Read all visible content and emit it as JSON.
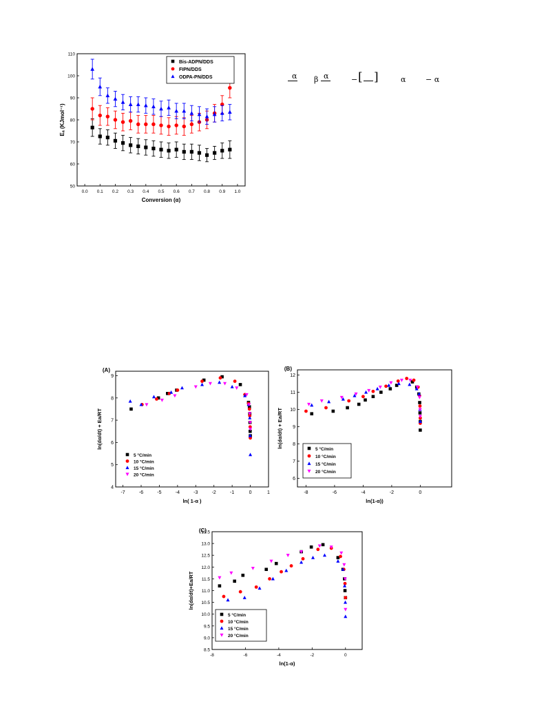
{
  "charts": {
    "main": {
      "type": "scatter",
      "title": "",
      "xlabel": "Conversion (α)",
      "ylabel": "Eₐ (KJmol⁻¹)",
      "xlim": [
        -0.05,
        1.05
      ],
      "ylim": [
        50,
        110
      ],
      "xticks": [
        "0.0",
        "0.1",
        "0.2",
        "0.3",
        "0.4",
        "0.5",
        "0.6",
        "0.7",
        "0.8",
        "0.9",
        "1.0"
      ],
      "yticks": [
        "50",
        "60",
        "70",
        "80",
        "90",
        "100",
        "110"
      ],
      "legend_position": "top-right",
      "x": [
        0.05,
        0.1,
        0.15,
        0.2,
        0.25,
        0.3,
        0.35,
        0.4,
        0.45,
        0.5,
        0.55,
        0.6,
        0.65,
        0.7,
        0.75,
        0.8,
        0.85,
        0.9,
        0.95
      ],
      "series": [
        {
          "name": "Bis-ADPN/DDS",
          "color": "#000000",
          "marker": "square",
          "values": [
            76.5,
            72.5,
            72,
            70.5,
            69.5,
            68.5,
            68,
            67.5,
            67,
            66.5,
            66,
            66.5,
            65.5,
            65.5,
            65,
            64,
            65,
            66,
            66.5
          ],
          "errors": [
            4,
            3.5,
            3.5,
            3.5,
            3.5,
            3.5,
            3.5,
            3.5,
            3.5,
            3.5,
            3.5,
            3.5,
            3.5,
            3.5,
            3.5,
            3,
            3,
            3.5,
            4
          ]
        },
        {
          "name": "FIPN/DDS",
          "color": "#ff0000",
          "marker": "circle",
          "values": [
            85,
            82,
            81.5,
            80,
            79,
            79.5,
            78,
            78,
            78,
            77.5,
            77,
            77.5,
            77,
            78,
            79,
            80,
            83,
            87,
            94.5
          ],
          "errors": [
            5,
            4.5,
            4,
            4,
            4,
            4,
            4,
            4,
            4,
            4,
            4,
            4,
            4,
            4,
            4,
            4,
            4,
            4,
            4.5
          ]
        },
        {
          "name": "ODPA-PN/DDS",
          "color": "#0000ff",
          "marker": "triangle",
          "values": [
            103,
            95,
            91,
            89.5,
            88,
            87,
            87,
            86.5,
            86,
            85,
            85.5,
            84,
            84,
            83,
            82.5,
            81.5,
            82.5,
            83,
            83.5
          ],
          "errors": [
            4.5,
            4,
            3.5,
            3.5,
            3.5,
            3.5,
            3.5,
            3.5,
            3.5,
            3.5,
            3.5,
            3.5,
            3.5,
            3.5,
            3.5,
            3.5,
            3.5,
            3.5,
            3.5
          ]
        }
      ]
    },
    "A": {
      "type": "scatter",
      "panel_label": "(A)",
      "xlabel": "ln( 1-α )",
      "ylabel": "ln(dα/dt) + Ea/RT",
      "xlim": [
        -7.4,
        1
      ],
      "ylim": [
        4,
        9.2
      ],
      "xticks": [
        "-7",
        "-6",
        "-5",
        "-4",
        "-3",
        "-2",
        "-1",
        "0",
        "1"
      ],
      "yticks": [
        "4",
        "5",
        "6",
        "7",
        "8",
        "9"
      ],
      "legend_position": "bottom-left",
      "series": [
        {
          "name": "5 °C/min",
          "color": "#000000",
          "marker": "square",
          "points": [
            [
              -6.55,
              7.5
            ],
            [
              -5.05,
              8.0
            ],
            [
              -4.55,
              8.2
            ],
            [
              -4.05,
              8.35
            ],
            [
              -2.55,
              8.8
            ],
            [
              -1.55,
              8.95
            ],
            [
              -0.55,
              8.6
            ],
            [
              -0.1,
              7.8
            ],
            [
              -0.05,
              7.6
            ],
            [
              -0.03,
              7.3
            ],
            [
              -0.02,
              6.9
            ],
            [
              -0.01,
              6.5
            ],
            [
              0,
              6.3
            ]
          ]
        },
        {
          "name": "10 °C/min",
          "color": "#ff0000",
          "marker": "circle",
          "points": [
            [
              -5.95,
              7.7
            ],
            [
              -5.15,
              7.95
            ],
            [
              -4.45,
              8.2
            ],
            [
              -4.0,
              8.35
            ],
            [
              -2.65,
              8.75
            ],
            [
              -1.65,
              8.9
            ],
            [
              -0.85,
              8.75
            ],
            [
              -0.3,
              8.15
            ],
            [
              -0.1,
              7.75
            ],
            [
              -0.05,
              7.5
            ],
            [
              -0.03,
              7.2
            ],
            [
              -0.01,
              6.7
            ],
            [
              0,
              6.2
            ]
          ]
        },
        {
          "name": "15 °C/min",
          "color": "#0000ff",
          "marker": "triangle",
          "points": [
            [
              -6.6,
              7.85
            ],
            [
              -6.0,
              7.7
            ],
            [
              -5.3,
              8.05
            ],
            [
              -4.35,
              8.25
            ],
            [
              -3.75,
              8.45
            ],
            [
              -2.65,
              8.6
            ],
            [
              -1.7,
              8.7
            ],
            [
              -1.0,
              8.5
            ],
            [
              -0.3,
              8.1
            ],
            [
              -0.1,
              7.7
            ],
            [
              -0.03,
              7.1
            ],
            [
              -0.01,
              6.3
            ],
            [
              0,
              5.45
            ]
          ]
        },
        {
          "name": "20 °C/min",
          "color": "#ff00ff",
          "marker": "triangle-down",
          "points": [
            [
              -5.7,
              7.7
            ],
            [
              -4.85,
              7.9
            ],
            [
              -4.15,
              8.1
            ],
            [
              -3.0,
              8.5
            ],
            [
              -2.2,
              8.65
            ],
            [
              -1.4,
              8.65
            ],
            [
              -0.75,
              8.45
            ],
            [
              -0.2,
              8.15
            ],
            [
              -0.07,
              7.7
            ],
            [
              -0.03,
              7.3
            ],
            [
              -0.01,
              6.9
            ],
            [
              0,
              6.6
            ]
          ]
        }
      ]
    },
    "B": {
      "type": "scatter",
      "panel_label": "(B)",
      "xlabel": "ln(1-α))",
      "ylabel": "ln(dα/dt) + Ea/RT",
      "xlim": [
        -8.6,
        2.2
      ],
      "ylim": [
        5.5,
        12.3
      ],
      "xticks": [
        "-8",
        "-6",
        "-4",
        "-2",
        "0"
      ],
      "yticks": [
        "6",
        "7",
        "8",
        "9",
        "10",
        "11",
        "12"
      ],
      "legend_position": "bottom-left",
      "series": [
        {
          "name": "5 °C/min",
          "color": "#000000",
          "marker": "square",
          "points": [
            [
              -7.6,
              9.75
            ],
            [
              -6.1,
              9.9
            ],
            [
              -5.1,
              10.1
            ],
            [
              -4.3,
              10.3
            ],
            [
              -3.85,
              10.55
            ],
            [
              -3.3,
              10.75
            ],
            [
              -2.75,
              11.0
            ],
            [
              -2.1,
              11.2
            ],
            [
              -1.65,
              11.4
            ],
            [
              -0.55,
              11.6
            ],
            [
              -0.25,
              11.3
            ],
            [
              -0.1,
              10.9
            ],
            [
              -0.04,
              10.4
            ],
            [
              -0.02,
              9.8
            ],
            [
              0,
              9.3
            ],
            [
              0,
              8.8
            ]
          ]
        },
        {
          "name": "10 °C/min",
          "color": "#ff0000",
          "marker": "circle",
          "points": [
            [
              -8.0,
              9.9
            ],
            [
              -6.6,
              10.1
            ],
            [
              -5.0,
              10.5
            ],
            [
              -4.0,
              10.75
            ],
            [
              -3.3,
              11.05
            ],
            [
              -2.4,
              11.35
            ],
            [
              -1.55,
              11.65
            ],
            [
              -0.95,
              11.8
            ],
            [
              -0.45,
              11.7
            ],
            [
              -0.15,
              11.3
            ],
            [
              -0.05,
              10.8
            ],
            [
              -0.02,
              10.2
            ],
            [
              0,
              9.5
            ],
            [
              0,
              9.2
            ]
          ]
        },
        {
          "name": "15 °C/min",
          "color": "#0000ff",
          "marker": "triangle",
          "points": [
            [
              -7.6,
              10.25
            ],
            [
              -6.4,
              10.45
            ],
            [
              -5.4,
              10.6
            ],
            [
              -4.6,
              10.8
            ],
            [
              -3.8,
              11.0
            ],
            [
              -3.0,
              11.2
            ],
            [
              -2.2,
              11.4
            ],
            [
              -1.5,
              11.5
            ],
            [
              -0.75,
              11.45
            ],
            [
              -0.25,
              11.2
            ],
            [
              -0.08,
              10.9
            ],
            [
              -0.02,
              10.0
            ],
            [
              0,
              9.3
            ]
          ]
        },
        {
          "name": "20 °C/min",
          "color": "#ff00ff",
          "marker": "triangle-down",
          "points": [
            [
              -7.8,
              10.3
            ],
            [
              -6.9,
              10.5
            ],
            [
              -5.5,
              10.7
            ],
            [
              -4.5,
              10.9
            ],
            [
              -3.6,
              11.1
            ],
            [
              -2.8,
              11.3
            ],
            [
              -2.05,
              11.55
            ],
            [
              -1.3,
              11.7
            ],
            [
              -0.7,
              11.7
            ],
            [
              -0.2,
              11.3
            ],
            [
              -0.05,
              10.7
            ],
            [
              -0.01,
              10.0
            ],
            [
              0,
              9.6
            ]
          ]
        }
      ]
    },
    "C": {
      "type": "scatter",
      "panel_label": "(C)",
      "xlabel": "ln(1-α)",
      "ylabel": "ln(dα/dt)+Ea/RT",
      "xlim": [
        -8,
        1
      ],
      "ylim": [
        8.5,
        13.5
      ],
      "xticks": [
        "-8",
        "-6",
        "-4",
        "-2",
        "0"
      ],
      "yticks": [
        "8.5",
        "9.0",
        "9.5",
        "10.0",
        "10.5",
        "11.0",
        "11.5",
        "12.0",
        "12.5",
        "13.0",
        "13.5"
      ],
      "legend_position": "bottom-left",
      "series": [
        {
          "name": "5 °C/min",
          "color": "#000000",
          "marker": "square",
          "points": [
            [
              -7.55,
              11.2
            ],
            [
              -6.65,
              11.4
            ],
            [
              -6.15,
              11.65
            ],
            [
              -4.75,
              11.9
            ],
            [
              -4.15,
              12.15
            ],
            [
              -2.65,
              12.65
            ],
            [
              -2.05,
              12.85
            ],
            [
              -1.35,
              12.95
            ],
            [
              -0.45,
              12.4
            ],
            [
              -0.15,
              11.9
            ],
            [
              -0.06,
              11.5
            ],
            [
              -0.03,
              11.0
            ],
            [
              0,
              10.7
            ]
          ]
        },
        {
          "name": "10 °C/min",
          "color": "#ff0000",
          "marker": "circle",
          "points": [
            [
              -7.3,
              10.75
            ],
            [
              -6.3,
              10.95
            ],
            [
              -5.35,
              11.15
            ],
            [
              -4.55,
              11.5
            ],
            [
              -3.85,
              11.8
            ],
            [
              -3.25,
              12.05
            ],
            [
              -2.55,
              12.35
            ],
            [
              -1.65,
              12.75
            ],
            [
              -0.85,
              12.8
            ],
            [
              -0.3,
              12.45
            ],
            [
              -0.1,
              11.9
            ],
            [
              -0.03,
              11.3
            ],
            [
              0,
              10.7
            ]
          ]
        },
        {
          "name": "15 °C/min",
          "color": "#0000ff",
          "marker": "triangle",
          "points": [
            [
              -7.05,
              10.6
            ],
            [
              -6.05,
              10.7
            ],
            [
              -5.15,
              11.1
            ],
            [
              -4.35,
              11.5
            ],
            [
              -3.55,
              11.85
            ],
            [
              -2.65,
              12.2
            ],
            [
              -1.95,
              12.4
            ],
            [
              -1.25,
              12.5
            ],
            [
              -0.45,
              12.25
            ],
            [
              -0.15,
              11.9
            ],
            [
              -0.05,
              11.2
            ],
            [
              -0.01,
              10.5
            ],
            [
              0,
              9.9
            ]
          ]
        },
        {
          "name": "20 °C/min",
          "color": "#ff00ff",
          "marker": "triangle-down",
          "points": [
            [
              -7.55,
              11.55
            ],
            [
              -6.85,
              11.75
            ],
            [
              -5.55,
              11.95
            ],
            [
              -4.45,
              12.25
            ],
            [
              -3.45,
              12.5
            ],
            [
              -2.65,
              12.65
            ],
            [
              -1.55,
              12.9
            ],
            [
              -0.85,
              12.85
            ],
            [
              -0.25,
              12.6
            ],
            [
              -0.08,
              12.1
            ],
            [
              -0.02,
              11.5
            ],
            [
              0,
              10.2
            ]
          ]
        }
      ]
    }
  },
  "equation": {
    "t1": "α",
    "t2": "β",
    "t3": "α",
    "t4": "−",
    "t5": "α",
    "t6": "− α"
  }
}
